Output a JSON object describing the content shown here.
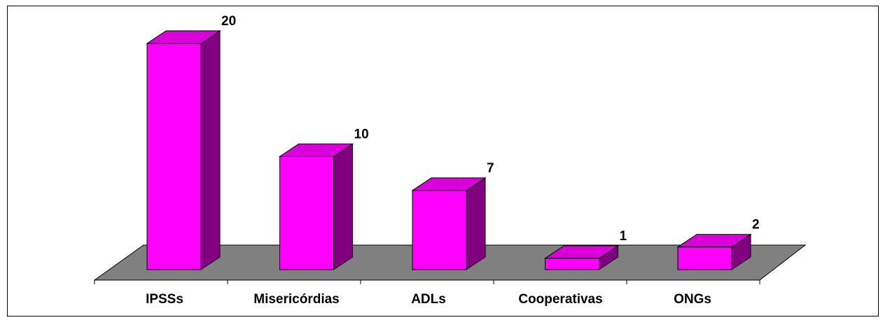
{
  "chart_data": {
    "type": "bar3d",
    "categories": [
      "IPSSs",
      "Misericórdias",
      "ADLs",
      "Cooperativas",
      "ONGs"
    ],
    "values": [
      20,
      10,
      7,
      1,
      2
    ],
    "color": "#ff00ff",
    "ylim": [
      0,
      20
    ]
  }
}
